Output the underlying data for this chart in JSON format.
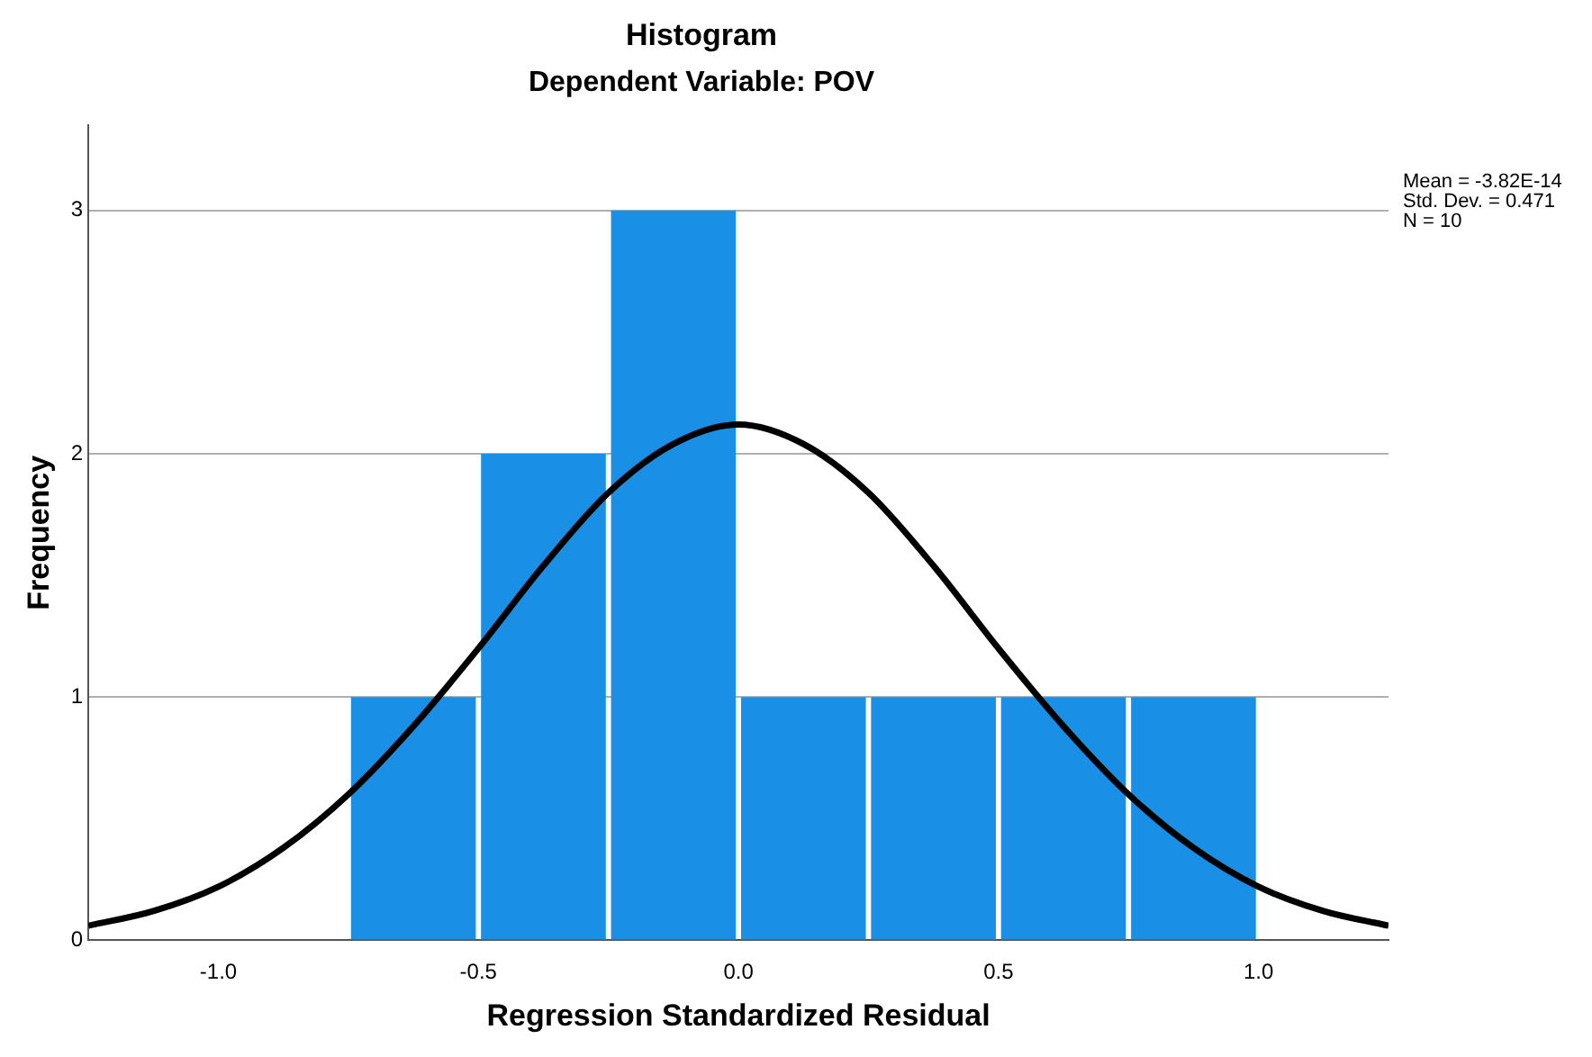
{
  "chart_data": {
    "type": "histogram",
    "title": "Histogram",
    "subtitle": "Dependent Variable: POV",
    "xlabel": "Regression Standardized Residual",
    "ylabel": "Frequency",
    "bins": [
      -0.75,
      -0.5,
      -0.25,
      0,
      0.25,
      0.5,
      0.75,
      1.0
    ],
    "values": [
      1,
      2,
      3,
      1,
      1,
      1,
      1
    ],
    "color": "#1a8fe6",
    "series": [
      {
        "type": "line",
        "color": "#000000",
        "x": [
          -1.25,
          -1.125,
          -1,
          -0.875,
          -0.75,
          -0.625,
          -0.5,
          -0.375,
          -0.25,
          -0.125,
          0,
          0.125,
          0.25,
          0.375,
          0.5,
          0.625,
          0.75,
          0.875,
          1,
          1.125,
          1.25
        ],
        "values": [
          0.06,
          0.12,
          0.22,
          0.38,
          0.6,
          0.88,
          1.2,
          1.54,
          1.84,
          2.04,
          2.12,
          2.04,
          1.84,
          1.54,
          1.2,
          0.88,
          0.6,
          0.38,
          0.22,
          0.12,
          0.06
        ]
      }
    ],
    "xlim": [
      -1.25,
      1.25
    ],
    "xticks": [
      {
        "value": -1,
        "label": "-1.0"
      },
      {
        "value": -0.5,
        "label": "-0.5"
      },
      {
        "value": 0,
        "label": "0.0"
      },
      {
        "value": 0.5,
        "label": "0.5"
      },
      {
        "value": 1,
        "label": "1.0"
      }
    ],
    "ylim": [
      0,
      3.35
    ],
    "yticks": [
      0,
      1,
      2,
      3
    ],
    "grid": "y",
    "legend": false,
    "annotations": [
      "Mean = -3.82E-14",
      "Std. Dev. = 0.471",
      "N = 10"
    ]
  }
}
